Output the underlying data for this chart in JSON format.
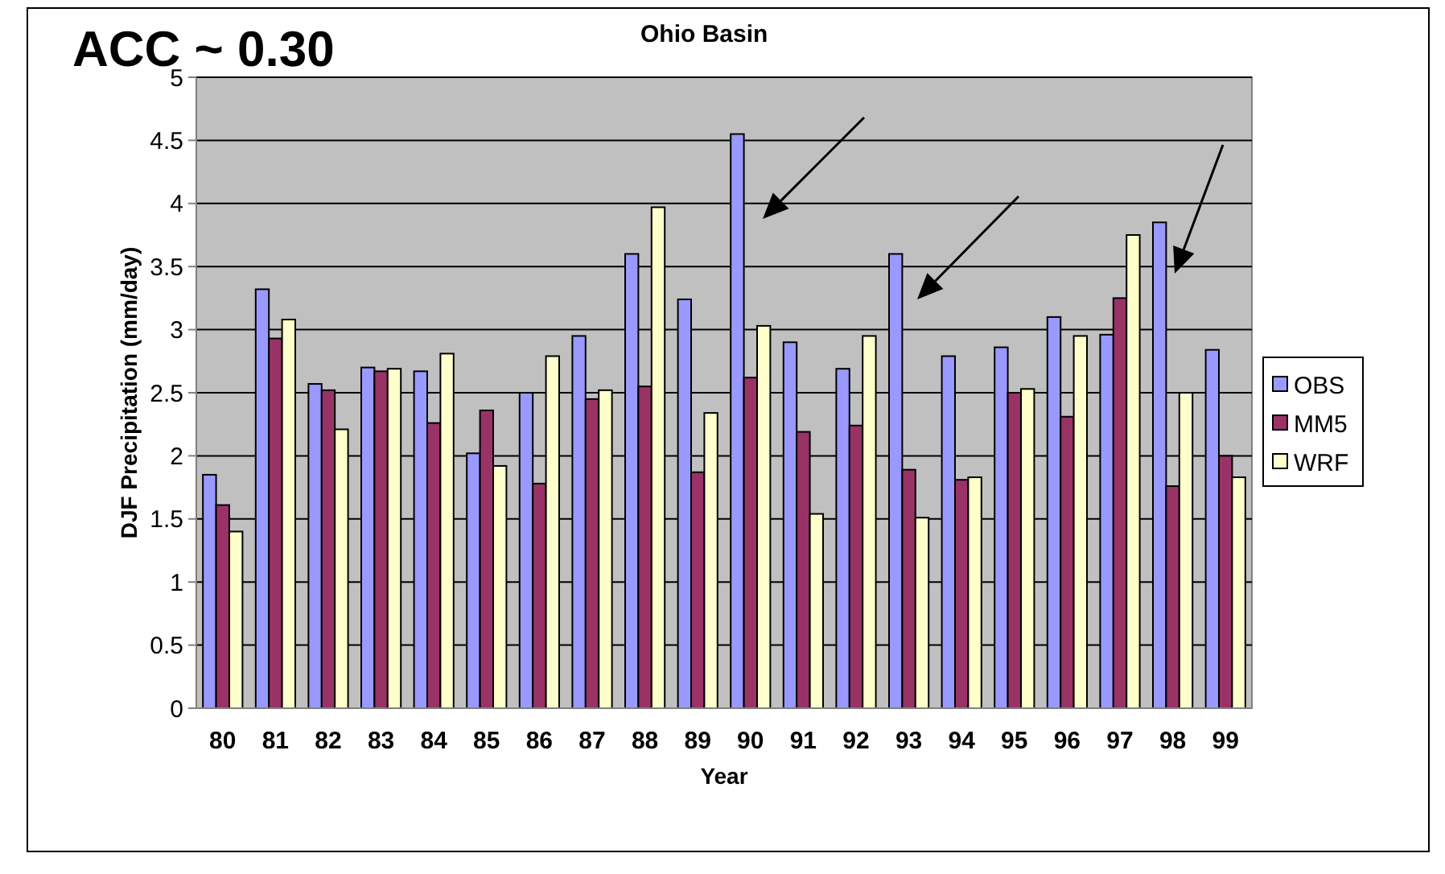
{
  "chart_data": {
    "type": "bar",
    "title": "ACC ~ 0.30",
    "xlabel": "Year",
    "ylabel": "DJF Precipitation (mm/day)",
    "annotations": [
      "Ohio Basin"
    ],
    "categories": [
      "80",
      "81",
      "82",
      "83",
      "84",
      "85",
      "86",
      "87",
      "88",
      "89",
      "90",
      "91",
      "92",
      "93",
      "94",
      "95",
      "96",
      "97",
      "98",
      "99"
    ],
    "series": [
      {
        "name": "OBS",
        "color": "#9999ff",
        "values": [
          1.85,
          3.32,
          2.57,
          2.7,
          2.67,
          2.02,
          2.5,
          2.95,
          3.6,
          3.24,
          4.55,
          2.9,
          2.69,
          3.6,
          2.79,
          2.86,
          3.1,
          2.96,
          3.85,
          2.84
        ]
      },
      {
        "name": "MM5",
        "color": "#993366",
        "values": [
          1.61,
          2.93,
          2.52,
          2.67,
          2.26,
          2.36,
          1.78,
          2.45,
          2.55,
          1.87,
          2.62,
          2.19,
          2.24,
          1.89,
          1.81,
          2.5,
          2.31,
          3.25,
          1.76,
          2.0
        ]
      },
      {
        "name": "WRF",
        "color": "#ffffcc",
        "values": [
          1.4,
          3.08,
          2.21,
          2.69,
          2.81,
          1.92,
          2.79,
          2.52,
          3.97,
          2.34,
          3.03,
          1.54,
          2.95,
          1.51,
          1.83,
          2.53,
          2.95,
          3.75,
          2.5,
          1.83
        ]
      }
    ],
    "ylim": [
      0,
      5
    ],
    "yticks": [
      0,
      0.5,
      1,
      1.5,
      2,
      2.5,
      3,
      3.5,
      4,
      4.5,
      5
    ],
    "grid": "y",
    "legend": "right"
  }
}
